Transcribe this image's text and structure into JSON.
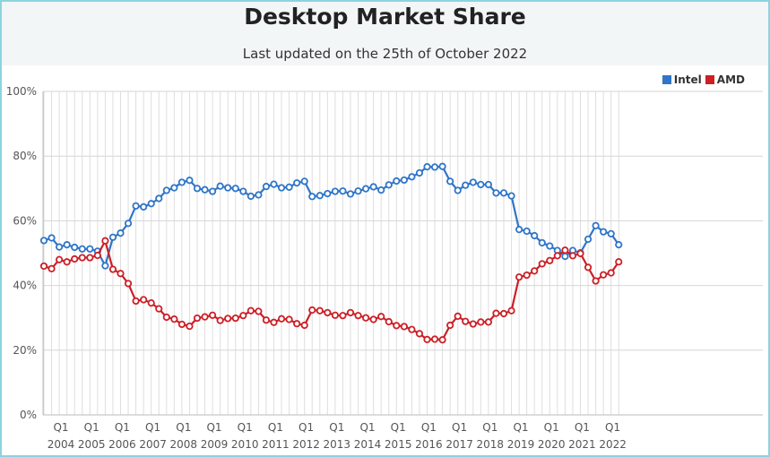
{
  "chart_data": {
    "type": "line",
    "title": "Desktop Market Share",
    "subtitle": "Last updated on the 25th of October 2022",
    "ylim": [
      0,
      100
    ],
    "y_ticks": [
      "0%",
      "20%",
      "40%",
      "60%",
      "80%",
      "100%"
    ],
    "y_tick_values": [
      0,
      20,
      40,
      60,
      80,
      100
    ],
    "quarter_label": "Q1",
    "years": [
      "2004",
      "2005",
      "2006",
      "2007",
      "2008",
      "2009",
      "2010",
      "2011",
      "2012",
      "2013",
      "2014",
      "2015",
      "2016",
      "2017",
      "2018",
      "2019",
      "2020",
      "2021",
      "2022"
    ],
    "grid": true,
    "legend_position": "top-right",
    "x": [
      "2004 Q1",
      "2004 Q2",
      "2004 Q3",
      "2004 Q4",
      "2005 Q1",
      "2005 Q2",
      "2005 Q3",
      "2005 Q4",
      "2006 Q1",
      "2006 Q2",
      "2006 Q3",
      "2006 Q4",
      "2007 Q1",
      "2007 Q2",
      "2007 Q3",
      "2007 Q4",
      "2008 Q1",
      "2008 Q2",
      "2008 Q3",
      "2008 Q4",
      "2009 Q1",
      "2009 Q2",
      "2009 Q3",
      "2009 Q4",
      "2010 Q1",
      "2010 Q2",
      "2010 Q3",
      "2010 Q4",
      "2011 Q1",
      "2011 Q2",
      "2011 Q3",
      "2011 Q4",
      "2012 Q1",
      "2012 Q2",
      "2012 Q3",
      "2012 Q4",
      "2013 Q1",
      "2013 Q2",
      "2013 Q3",
      "2013 Q4",
      "2014 Q1",
      "2014 Q2",
      "2014 Q3",
      "2014 Q4",
      "2015 Q1",
      "2015 Q2",
      "2015 Q3",
      "2015 Q4",
      "2016 Q1",
      "2016 Q2",
      "2016 Q3",
      "2016 Q4",
      "2017 Q1",
      "2017 Q2",
      "2017 Q3",
      "2017 Q4",
      "2018 Q1",
      "2018 Q2",
      "2018 Q3",
      "2018 Q4",
      "2019 Q1",
      "2019 Q2",
      "2019 Q3",
      "2019 Q4",
      "2020 Q1",
      "2020 Q2",
      "2020 Q3",
      "2020 Q4",
      "2021 Q1",
      "2021 Q2",
      "2021 Q3",
      "2021 Q4",
      "2022 Q1",
      "2022 Q2",
      "2022 Q3",
      "2022 Q4"
    ],
    "series": [
      {
        "name": "Intel",
        "color": "#2f75c8",
        "values": [
          53.9,
          54.7,
          51.9,
          52.6,
          51.8,
          51.3,
          51.3,
          50.6,
          46.1,
          54.9,
          56.2,
          59.2,
          64.6,
          64.3,
          65.3,
          66.9,
          69.4,
          70.2,
          71.9,
          72.5,
          70.0,
          69.6,
          69.1,
          70.7,
          70.2,
          70.0,
          69.1,
          67.6,
          68.0,
          70.6,
          71.3,
          70.2,
          70.4,
          71.7,
          72.2,
          67.5,
          67.8,
          68.4,
          69.1,
          69.2,
          68.3,
          69.2,
          69.9,
          70.5,
          69.5,
          71.1,
          72.3,
          72.6,
          73.6,
          74.8,
          76.7,
          76.6,
          76.8,
          72.2,
          69.4,
          71.0,
          71.9,
          71.2,
          71.2,
          68.6,
          68.6,
          67.7,
          57.3,
          56.8,
          55.4,
          53.2,
          52.2,
          50.8,
          49.0,
          50.8,
          50.1,
          54.3,
          58.5,
          56.6,
          56.0,
          52.6
        ]
      },
      {
        "name": "AMD",
        "color": "#cc1f26",
        "values": [
          46.0,
          45.2,
          48.0,
          47.3,
          48.2,
          48.6,
          48.6,
          49.3,
          53.8,
          45.0,
          43.7,
          40.6,
          35.2,
          35.6,
          34.6,
          32.8,
          30.2,
          29.6,
          28.0,
          27.4,
          29.9,
          30.3,
          30.8,
          29.2,
          29.8,
          29.9,
          30.7,
          32.2,
          32.0,
          29.3,
          28.6,
          29.7,
          29.5,
          28.2,
          27.7,
          32.4,
          32.2,
          31.6,
          30.8,
          30.7,
          31.6,
          30.7,
          30.0,
          29.5,
          30.4,
          28.8,
          27.6,
          27.3,
          26.4,
          25.1,
          23.3,
          23.4,
          23.2,
          27.7,
          30.5,
          28.9,
          28.1,
          28.7,
          28.7,
          31.4,
          31.3,
          32.2,
          42.6,
          43.2,
          44.5,
          46.7,
          47.7,
          49.2,
          50.9,
          49.2,
          49.9,
          45.6,
          41.4,
          43.3,
          43.9,
          47.3
        ]
      }
    ]
  }
}
